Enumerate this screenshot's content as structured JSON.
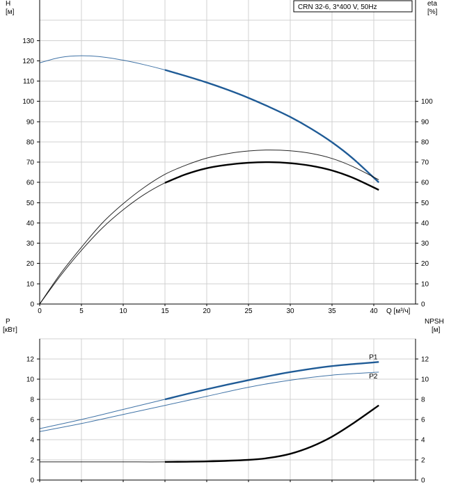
{
  "chart_data": [
    {
      "type": "line",
      "title": "CRN 32-6, 3*400 V, 50Hz",
      "y_left": {
        "label": "H",
        "unit": "[м]",
        "ticks": [
          0,
          10,
          20,
          30,
          40,
          50,
          60,
          70,
          80,
          90,
          100,
          110,
          120,
          130
        ],
        "range": [
          0,
          150
        ]
      },
      "y_right": {
        "label": "eta",
        "unit": "[%]",
        "ticks": [
          0,
          10,
          20,
          30,
          40,
          50,
          60,
          70,
          80,
          90,
          100
        ],
        "range": [
          0,
          150
        ]
      },
      "x_axis": {
        "label": "Q [м³/ч]",
        "ticks": [
          0,
          5,
          10,
          15,
          20,
          25,
          30,
          35,
          40
        ],
        "range": [
          0,
          45
        ]
      },
      "grid": true,
      "series": [
        {
          "name": "H",
          "color": "#1f5b96",
          "x": [
            0,
            2.5,
            5,
            7.5,
            10,
            12.5,
            15,
            17.5,
            20,
            22.5,
            25,
            27.5,
            30,
            32.5,
            35,
            37.5,
            40.6
          ],
          "y": [
            119,
            121.7,
            122.5,
            121.9,
            120.3,
            118.1,
            115.5,
            112.5,
            109.3,
            105.7,
            101.7,
            97.2,
            92.3,
            86.5,
            79.8,
            71.8,
            60
          ],
          "bold_from": 15
        },
        {
          "name": "eta_upper",
          "color": "#000000",
          "x": [
            0,
            2.5,
            5,
            7.5,
            10,
            12.5,
            15,
            17.5,
            20,
            22.5,
            25,
            27.5,
            30,
            32.5,
            35,
            37.5,
            40.6
          ],
          "y": [
            0,
            15,
            28,
            40,
            49.5,
            57.5,
            64,
            68.5,
            72,
            74.2,
            75.5,
            76,
            75.6,
            74.3,
            71.8,
            67.8,
            61.3
          ],
          "bold_from": 999
        },
        {
          "name": "eta_lower",
          "color": "#000000",
          "x": [
            0,
            2.5,
            5,
            7.5,
            10,
            12.5,
            15,
            17.5,
            20,
            22.5,
            25,
            27.5,
            30,
            32.5,
            35,
            37.5,
            40.6
          ],
          "y": [
            0,
            14,
            26.5,
            37.5,
            46.5,
            54,
            59.8,
            64,
            67,
            68.7,
            69.7,
            70,
            69.5,
            68.2,
            65.9,
            62.3,
            56.3
          ],
          "bold_from": 15
        }
      ]
    },
    {
      "type": "line",
      "y_left": {
        "label": "P",
        "unit": "[кВт]",
        "ticks": [
          0,
          2,
          4,
          6,
          8,
          10,
          12
        ],
        "range": [
          0,
          14
        ]
      },
      "y_right": {
        "label": "NPSH",
        "unit": "[м]",
        "ticks": [
          0,
          2,
          4,
          6,
          8,
          10,
          12
        ],
        "range": [
          0,
          14
        ]
      },
      "x_axis": {
        "range": [
          0,
          45
        ]
      },
      "grid": true,
      "series": [
        {
          "name": "P1",
          "color": "#1f5b96",
          "x": [
            0,
            5,
            10,
            15,
            20,
            25,
            30,
            35,
            40.6
          ],
          "y": [
            5.1,
            6.0,
            7.0,
            8.0,
            9.0,
            9.9,
            10.7,
            11.3,
            11.7
          ],
          "bold_from": 15
        },
        {
          "name": "P2",
          "color": "#1f5b96",
          "x": [
            0,
            5,
            10,
            15,
            20,
            25,
            30,
            35,
            40.6
          ],
          "y": [
            4.8,
            5.6,
            6.5,
            7.4,
            8.3,
            9.2,
            9.9,
            10.4,
            10.7
          ],
          "bold_from": 999
        },
        {
          "name": "NPSH",
          "color": "#000000",
          "x": [
            0,
            5,
            10,
            15,
            20,
            25,
            27.5,
            30,
            32.5,
            35,
            37.5,
            40.6
          ],
          "y": [
            1.8,
            1.8,
            1.8,
            1.8,
            1.85,
            2.0,
            2.2,
            2.6,
            3.3,
            4.3,
            5.6,
            7.4
          ],
          "bold_from": 15
        }
      ]
    }
  ]
}
